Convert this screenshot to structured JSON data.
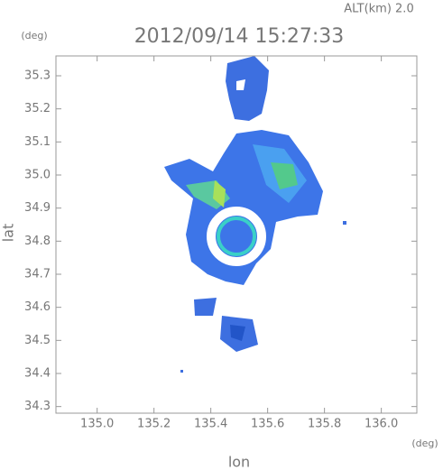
{
  "chart_data": {
    "type": "map",
    "title": "2012/09/14 15:27:33",
    "annotation": "ALT(km) 2.0",
    "x_label": "lon",
    "y_label": "lat",
    "x_unit": "(deg)",
    "y_unit": "(deg)",
    "xlim": [
      134.855,
      136.125
    ],
    "ylim": [
      34.28,
      35.36
    ],
    "xticks": [
      {
        "value": 135.0,
        "label": "135.0"
      },
      135.2,
      135.4,
      135.6,
      135.8,
      {
        "value": 136.0,
        "label": "136.0"
      }
    ],
    "yticks": [
      34.3,
      34.4,
      34.5,
      34.6,
      34.7,
      34.8,
      34.9,
      {
        "value": 35.0,
        "label": "35.0"
      },
      35.1,
      35.2,
      35.3
    ]
  }
}
